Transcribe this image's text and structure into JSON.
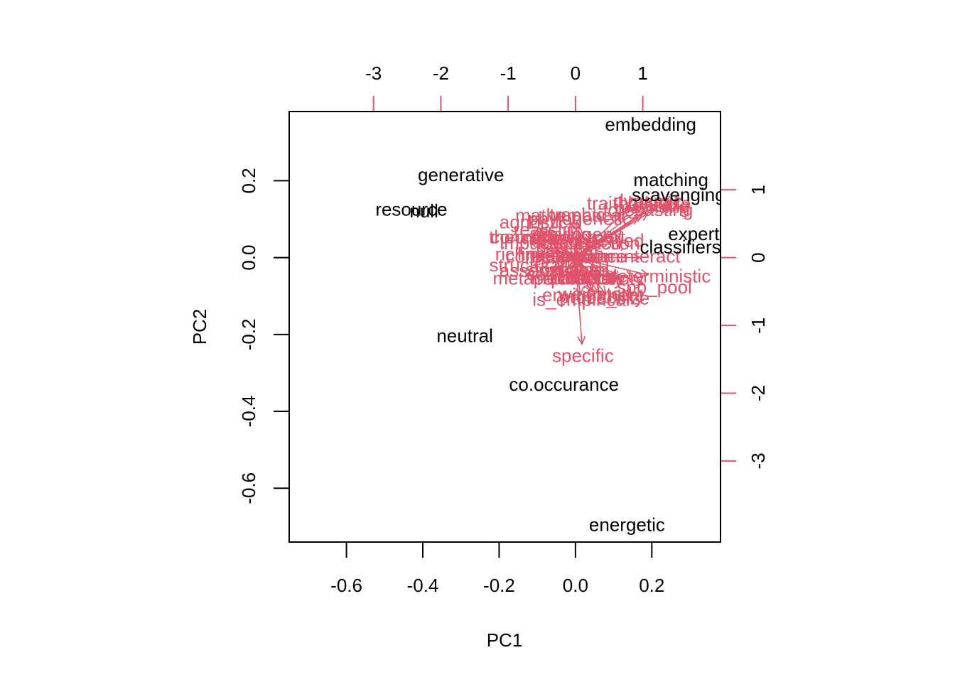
{
  "chart_data": {
    "type": "scatter",
    "subtype": "pca-biplot",
    "title": "",
    "xlabel": "PC1",
    "ylabel": "PC2",
    "xlim": [
      -0.75,
      0.38
    ],
    "ylim": [
      -0.74,
      0.38
    ],
    "x_ticks": [
      -0.6,
      -0.4,
      -0.2,
      0.0,
      0.2
    ],
    "x_tick_labels": [
      "-0.6",
      "-0.4",
      "-0.2",
      "0.0",
      "0.2"
    ],
    "y_ticks": [
      -0.6,
      -0.4,
      -0.2,
      0.0,
      0.2
    ],
    "y_tick_labels": [
      "-0.6",
      "-0.4",
      "-0.2",
      "0.0",
      "0.2"
    ],
    "loading_scale": 5.67,
    "top_ticks": [
      -3,
      -2,
      -1,
      0,
      1
    ],
    "top_tick_labels": [
      "-3",
      "-2",
      "-1",
      "0",
      "1"
    ],
    "right_ticks": [
      -3,
      -2,
      -1,
      0,
      1
    ],
    "right_tick_labels": [
      "-3",
      "-2",
      "-1",
      "0",
      "1"
    ],
    "grid": false,
    "legend": "none",
    "colors": {
      "scores": "#000000",
      "loadings": "#DF536B",
      "frame": "#000000"
    },
    "scores": [
      {
        "label": "embedding",
        "x": 0.197,
        "y": 0.343
      },
      {
        "label": "generative",
        "x": -0.3,
        "y": 0.212
      },
      {
        "label": "resource",
        "x": -0.43,
        "y": 0.122
      },
      {
        "label": "null",
        "x": -0.397,
        "y": 0.117
      },
      {
        "label": "matching",
        "x": 0.25,
        "y": 0.199
      },
      {
        "label": "scavenging",
        "x": 0.27,
        "y": 0.16
      },
      {
        "label": "expert",
        "x": 0.31,
        "y": 0.058
      },
      {
        "label": "classifiers",
        "x": 0.275,
        "y": 0.024
      },
      {
        "label": "neutral",
        "x": -0.29,
        "y": -0.207
      },
      {
        "label": "co.occurance",
        "x": -0.03,
        "y": -0.334
      },
      {
        "label": "energetic",
        "x": 0.135,
        "y": -0.699
      }
    ],
    "loadings": [
      {
        "label": "forecasting",
        "x": 0.165,
        "y": 0.105
      },
      {
        "label": "dynamic",
        "x": 0.165,
        "y": 0.125
      },
      {
        "label": "bodysize",
        "x": 0.18,
        "y": 0.12
      },
      {
        "label": "feasible",
        "x": 0.19,
        "y": 0.115
      },
      {
        "label": "trait_based",
        "x": 0.13,
        "y": 0.12
      },
      {
        "label": "matching",
        "x": 0.175,
        "y": 0.112
      },
      {
        "label": "mathematical",
        "x": -0.012,
        "y": 0.092
      },
      {
        "label": "phylogenetic",
        "x": 0.01,
        "y": 0.085
      },
      {
        "label": "trophic",
        "x": 0.004,
        "y": 0.094
      },
      {
        "label": "agnostic",
        "x": -0.095,
        "y": 0.077
      },
      {
        "label": "realistic",
        "x": -0.07,
        "y": 0.06
      },
      {
        "label": "phylogeny",
        "x": 0.01,
        "y": 0.05
      },
      {
        "label": "scaling",
        "x": -0.03,
        "y": 0.05
      },
      {
        "label": "concept",
        "x": -0.12,
        "y": 0.043
      },
      {
        "label": "theoretical",
        "x": -0.1,
        "y": 0.043
      },
      {
        "label": "niche",
        "x": -0.07,
        "y": 0.04
      },
      {
        "label": "expert",
        "x": 0.055,
        "y": 0.043
      },
      {
        "label": "observed",
        "x": 0.07,
        "y": 0.035
      },
      {
        "label": "interaction",
        "x": 0.05,
        "y": 0.03
      },
      {
        "label": "published",
        "x": 0.015,
        "y": 0.03
      },
      {
        "label": "impacts",
        "x": -0.1,
        "y": 0.03
      },
      {
        "label": "food",
        "x": -0.06,
        "y": 0.04
      },
      {
        "label": "richness",
        "x": -0.105,
        "y": 0.005
      },
      {
        "label": "links",
        "x": -0.09,
        "y": 0.005
      },
      {
        "label": "connectance",
        "x": -0.04,
        "y": 0.0
      },
      {
        "label": "size",
        "x": -0.02,
        "y": 0.002
      },
      {
        "label": "metaweb",
        "x": -0.02,
        "y": 0.005
      },
      {
        "label": "ecosystem",
        "x": 0.0,
        "y": 0.0
      },
      {
        "label": "abundance",
        "x": 0.012,
        "y": 0.0
      },
      {
        "label": "interact",
        "x": 0.17,
        "y": 0.0
      },
      {
        "label": "structural",
        "x": -0.11,
        "y": -0.02
      },
      {
        "label": "assemblage",
        "x": -0.06,
        "y": -0.032
      },
      {
        "label": "stochastic",
        "x": -0.02,
        "y": -0.03
      },
      {
        "label": "spatial",
        "x": 0.0,
        "y": -0.03
      },
      {
        "label": "model",
        "x": 0.02,
        "y": -0.03
      },
      {
        "label": "community",
        "x": -0.01,
        "y": -0.04
      },
      {
        "label": "mechanistic",
        "x": 0.01,
        "y": -0.05
      },
      {
        "label": "metacommunity",
        "x": -0.04,
        "y": -0.05
      },
      {
        "label": "parameter",
        "x": 0.0,
        "y": -0.05
      },
      {
        "label": "productivity",
        "x": 0.05,
        "y": -0.05
      },
      {
        "label": "deterministic",
        "x": 0.19,
        "y": -0.045
      },
      {
        "label": "spp_pool",
        "x": 0.18,
        "y": -0.07
      },
      {
        "label": "is_empirical",
        "x": 0.013,
        "y": -0.098
      },
      {
        "label": "weighted",
        "x": 0.045,
        "y": -0.085
      },
      {
        "label": "environment",
        "x": 0.04,
        "y": -0.088
      },
      {
        "label": "probability",
        "x": 0.06,
        "y": -0.092
      },
      {
        "label": "time_size",
        "x": 0.08,
        "y": -0.095
      },
      {
        "label": "specific",
        "x": 0.017,
        "y": -0.225
      }
    ]
  }
}
